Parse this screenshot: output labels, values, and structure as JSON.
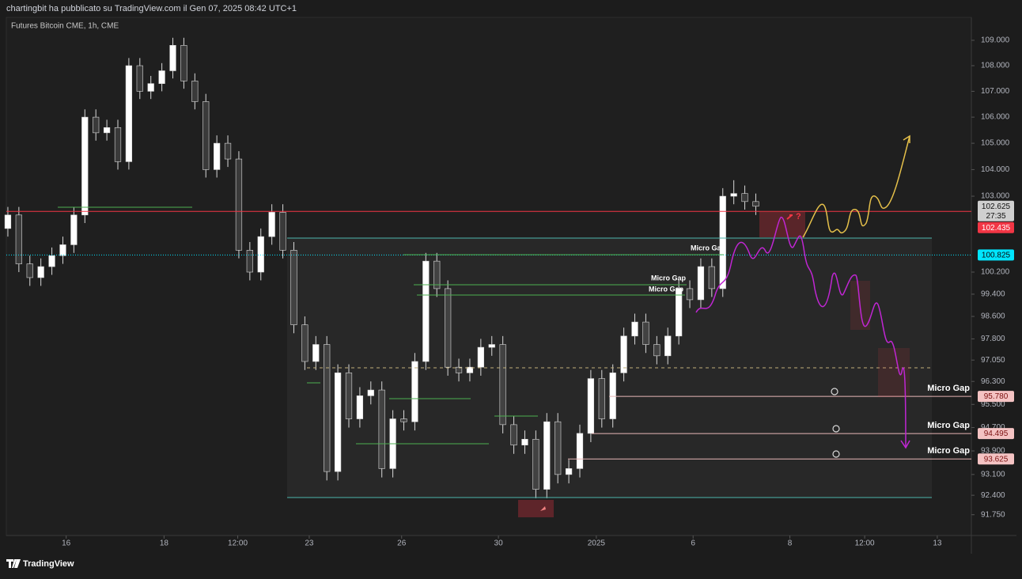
{
  "header": {
    "text": "chartingbit ha pubblicato su TradingView.com il Gen 07, 2025 08:42 UTC+1"
  },
  "footer": {
    "brand": "TradingView"
  },
  "chart_data": {
    "type": "candlestick",
    "title": "Futures Bitcoin CME, 1h, CME",
    "log_scale": true,
    "up_color": "#ffffff",
    "down_color": "#3a3a3a",
    "wick_color": "#d8d8d8",
    "candles": {
      "x": [
        0,
        1,
        2,
        3,
        4,
        5,
        6,
        7,
        8,
        9,
        10,
        11,
        12,
        13,
        14,
        15,
        16,
        17,
        18,
        19,
        20,
        21,
        22,
        23,
        24,
        25,
        26,
        27,
        28,
        29,
        30,
        31,
        32,
        33,
        34,
        35,
        36,
        37,
        38,
        39,
        40,
        41,
        42,
        43,
        44,
        45,
        46,
        47,
        48,
        49,
        50,
        51,
        52,
        53,
        54,
        55,
        56,
        57,
        58,
        59,
        60,
        61,
        62,
        63,
        64,
        65,
        66,
        67,
        68
      ],
      "open": [
        101.8,
        102.3,
        100.5,
        100.0,
        100.4,
        100.8,
        101.2,
        102.3,
        106.0,
        105.4,
        105.6,
        104.3,
        108.0,
        107.0,
        107.3,
        107.8,
        108.8,
        107.4,
        106.6,
        104.0,
        105.0,
        104.4,
        101.0,
        100.2,
        101.5,
        102.4,
        101.0,
        98.3,
        97.0,
        97.6,
        93.2,
        96.6,
        95.0,
        95.8,
        96.0,
        93.3,
        95.0,
        94.9,
        97.0,
        100.6,
        99.6,
        96.8,
        96.6,
        96.8,
        97.5,
        97.6,
        94.8,
        94.1,
        94.3,
        92.6,
        94.9,
        93.1,
        93.3,
        94.5,
        96.4,
        95.0,
        96.6,
        97.9,
        98.4,
        97.6,
        97.2,
        97.9,
        99.6,
        99.2,
        100.4,
        99.6,
        103.0,
        103.1,
        102.8
      ],
      "high": [
        102.6,
        102.6,
        100.8,
        100.7,
        101.1,
        101.5,
        102.6,
        106.3,
        106.3,
        105.9,
        105.9,
        108.3,
        108.3,
        107.6,
        108.1,
        109.1,
        109.1,
        107.7,
        106.9,
        105.3,
        105.3,
        104.7,
        101.3,
        101.8,
        102.7,
        102.7,
        101.3,
        98.6,
        97.9,
        97.9,
        96.9,
        96.9,
        96.1,
        96.3,
        96.3,
        95.3,
        95.3,
        97.3,
        100.9,
        100.9,
        99.9,
        97.1,
        97.1,
        97.8,
        97.9,
        97.9,
        95.1,
        94.6,
        94.6,
        95.2,
        95.2,
        93.6,
        94.8,
        96.7,
        96.7,
        96.9,
        98.2,
        98.7,
        98.7,
        97.9,
        98.2,
        99.9,
        99.9,
        100.7,
        100.7,
        103.3,
        103.6,
        103.4,
        103.1
      ],
      "low": [
        101.5,
        100.2,
        99.7,
        99.7,
        100.1,
        100.5,
        100.9,
        102.0,
        105.1,
        105.1,
        104.0,
        104.0,
        106.7,
        106.7,
        107.0,
        107.5,
        107.1,
        106.3,
        103.7,
        103.7,
        104.1,
        100.7,
        99.9,
        99.9,
        101.2,
        100.7,
        98.0,
        96.7,
        96.7,
        92.9,
        92.9,
        94.7,
        94.7,
        95.5,
        93.0,
        93.0,
        94.6,
        94.6,
        96.7,
        99.3,
        96.5,
        96.3,
        96.3,
        96.5,
        97.2,
        94.5,
        93.8,
        93.8,
        92.3,
        92.3,
        92.8,
        92.8,
        93.0,
        94.2,
        94.7,
        94.7,
        96.3,
        97.6,
        97.3,
        96.9,
        96.9,
        97.6,
        98.9,
        98.9,
        99.3,
        99.3,
        102.7,
        102.5,
        102.3
      ],
      "close": [
        102.3,
        100.5,
        100.0,
        100.4,
        100.8,
        101.2,
        102.3,
        106.0,
        105.4,
        105.6,
        104.3,
        108.0,
        107.0,
        107.3,
        107.8,
        108.8,
        107.4,
        106.6,
        104.0,
        105.0,
        104.4,
        101.0,
        100.2,
        101.5,
        102.4,
        101.0,
        98.3,
        97.0,
        97.6,
        93.2,
        96.6,
        95.0,
        95.8,
        96.0,
        93.3,
        95.0,
        94.9,
        97.0,
        100.6,
        99.6,
        96.8,
        96.6,
        96.8,
        97.5,
        97.6,
        94.8,
        94.1,
        94.3,
        92.6,
        94.9,
        93.1,
        93.3,
        94.5,
        96.4,
        95.0,
        96.6,
        97.9,
        98.4,
        97.6,
        97.2,
        97.9,
        99.6,
        99.2,
        100.4,
        99.6,
        103.0,
        103.1,
        102.8,
        102.625
      ]
    },
    "xlim": [
      -0.14,
      87.6
    ],
    "xticks": [
      {
        "value": 5.3,
        "label": "16"
      },
      {
        "value": 14.2,
        "label": "18"
      },
      {
        "value": 20.9,
        "label": "12:00"
      },
      {
        "value": 27.4,
        "label": "23"
      },
      {
        "value": 35.8,
        "label": "26"
      },
      {
        "value": 44.6,
        "label": "30"
      },
      {
        "value": 53.5,
        "label": "2025"
      },
      {
        "value": 62.3,
        "label": "6"
      },
      {
        "value": 71.1,
        "label": "8"
      },
      {
        "value": 77.9,
        "label": "12:00"
      },
      {
        "value": 84.5,
        "label": "13"
      }
    ],
    "ylim": [
      91.06,
      109.91
    ],
    "yticks": [
      {
        "value": 109,
        "label": "109.000"
      },
      {
        "value": 108,
        "label": "108.000"
      },
      {
        "value": 107,
        "label": "107.000"
      },
      {
        "value": 106,
        "label": "106.000"
      },
      {
        "value": 105,
        "label": "105.000"
      },
      {
        "value": 104,
        "label": "104.000"
      },
      {
        "value": 103,
        "label": "103.000"
      },
      {
        "value": 100.2,
        "label": "100.200"
      },
      {
        "value": 99.4,
        "label": "99.400"
      },
      {
        "value": 98.6,
        "label": "98.600"
      },
      {
        "value": 97.8,
        "label": "97.800"
      },
      {
        "value": 97.05,
        "label": "97.050"
      },
      {
        "value": 96.3,
        "label": "96.300"
      },
      {
        "value": 95.5,
        "label": "95.500"
      },
      {
        "value": 94.7,
        "label": "94.700"
      },
      {
        "value": 93.9,
        "label": "93.900"
      },
      {
        "value": 93.1,
        "label": "93.100"
      },
      {
        "value": 92.4,
        "label": "92.400"
      },
      {
        "value": 91.75,
        "label": "91.750"
      }
    ],
    "levels": [
      {
        "value": 102.625,
        "label": "102.625",
        "countdown": "27:35",
        "color": "#cfcfcf",
        "text_color": "#111111",
        "line": "none"
      },
      {
        "value": 102.435,
        "label": "102.435",
        "color": "#f23645",
        "text_color": "#ffffff",
        "line": "solid"
      },
      {
        "value": 100.825,
        "label": "100.825",
        "color": "#00e5ff",
        "text_color": "#0a0a0a",
        "line": "dotted"
      },
      {
        "value": 95.78,
        "label": "95.780",
        "color": "#f4c3c3",
        "text_color": "#7a1010",
        "line": "solid",
        "note": "Micro Gap"
      },
      {
        "value": 94.495,
        "label": "94.495",
        "color": "#f4c3c3",
        "text_color": "#7a1010",
        "line": "solid",
        "note": "Micro Gap"
      },
      {
        "value": 93.625,
        "label": "93.625",
        "color": "#f4c3c3",
        "text_color": "#7a1010",
        "line": "solid",
        "note": "Micro Gap"
      }
    ],
    "annotations": [
      "Micro Gap",
      "Micro Gap",
      "Micro Gap"
    ]
  }
}
